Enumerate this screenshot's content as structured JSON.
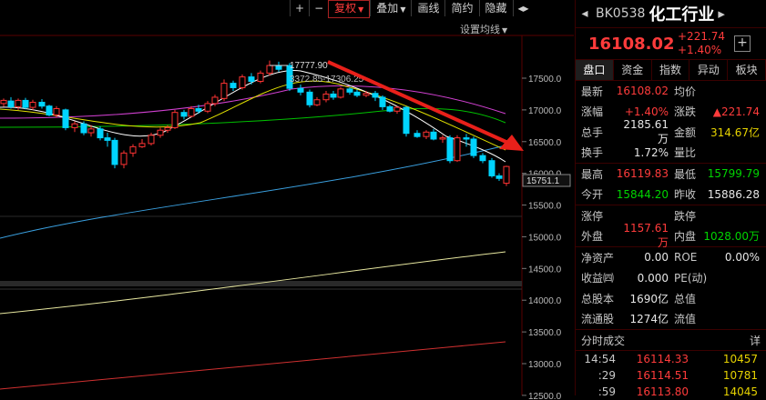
{
  "toolbar": {
    "buttons": [
      "+",
      "−",
      "复权",
      "叠加",
      "画线",
      "简约",
      "隐藏",
      "◂▸"
    ],
    "settings_label": "设置均线"
  },
  "chart": {
    "price_tag": "15751.1",
    "high_annotation": "17777.90",
    "range_annotation": "3372.85-17306.25",
    "axis_ticks": [
      "17500.0",
      "17000.0",
      "16500.0",
      "16000.0",
      "15500.0",
      "15000.0",
      "14500.0",
      "14000.0",
      "13500.0",
      "13000.0",
      "12500.0"
    ],
    "colors": {
      "up": "#ff3333",
      "down": "#00d4ff",
      "arrow": "#e8201a",
      "ma5": "#ffffff",
      "ma10": "#e0e000",
      "ma20": "#d040d0",
      "ma30": "#00c000",
      "ma60": "#3aa0e0",
      "ma120": "#e8e8a0",
      "ma250": "#d03030"
    }
  },
  "header": {
    "back": "◂",
    "code": "BK0538",
    "name": "化工行业",
    "more": "▸"
  },
  "price": {
    "last": "16108.02",
    "change": "+221.74",
    "change_pct": "+1.40%",
    "plus": "+"
  },
  "tabs": [
    "盘口",
    "资金",
    "指数",
    "异动",
    "板块"
  ],
  "quotes": [
    {
      "l1": "最新",
      "v1": "16108.02",
      "c1": "red",
      "l2": "均价",
      "v2": "",
      "c2": "wht"
    },
    {
      "l1": "涨幅",
      "v1": "+1.40%",
      "c1": "red",
      "l2": "涨跌",
      "v2": "▲221.74",
      "c2": "red"
    },
    {
      "l1": "总手",
      "v1": "2185.61万",
      "c1": "wht",
      "l2": "金额",
      "v2": "314.67亿",
      "c2": "yel"
    },
    {
      "l1": "换手",
      "v1": "1.72%",
      "c1": "wht",
      "l2": "量比",
      "v2": "",
      "c2": "wht"
    },
    {
      "l1": "最高",
      "v1": "16119.83",
      "c1": "red",
      "l2": "最低",
      "v2": "15799.79",
      "c2": "grn"
    },
    {
      "l1": "今开",
      "v1": "15844.20",
      "c1": "grn",
      "l2": "昨收",
      "v2": "15886.28",
      "c2": "wht"
    },
    {
      "l1": "涨停",
      "v1": "",
      "c1": "wht",
      "l2": "跌停",
      "v2": "",
      "c2": "wht"
    },
    {
      "l1": "外盘",
      "v1": "1157.61万",
      "c1": "red",
      "l2": "内盘",
      "v2": "1028.00万",
      "c2": "grn"
    },
    {
      "l1": "净资产",
      "v1": "0.00",
      "c1": "wht",
      "l2": "ROE",
      "v2": "0.00%",
      "c2": "wht"
    },
    {
      "l1": "收益㈣",
      "v1": "0.000",
      "c1": "wht",
      "l2": "PE(动)",
      "v2": "",
      "c2": "wht"
    },
    {
      "l1": "总股本",
      "v1": "1690亿",
      "c1": "wht",
      "l2": "总值",
      "v2": "",
      "c2": "wht"
    },
    {
      "l1": "流通股",
      "v1": "1274亿",
      "c1": "wht",
      "l2": "流值",
      "v2": "",
      "c2": "wht"
    }
  ],
  "trades": {
    "title": "分时成交",
    "detail": "详",
    "rows": [
      {
        "time": "14:54",
        "price": "16114.33",
        "vol": "10457"
      },
      {
        "time": ":29",
        "price": "16114.51",
        "vol": "10781"
      },
      {
        "time": ":59",
        "price": "16113.80",
        "vol": "14045"
      }
    ]
  }
}
